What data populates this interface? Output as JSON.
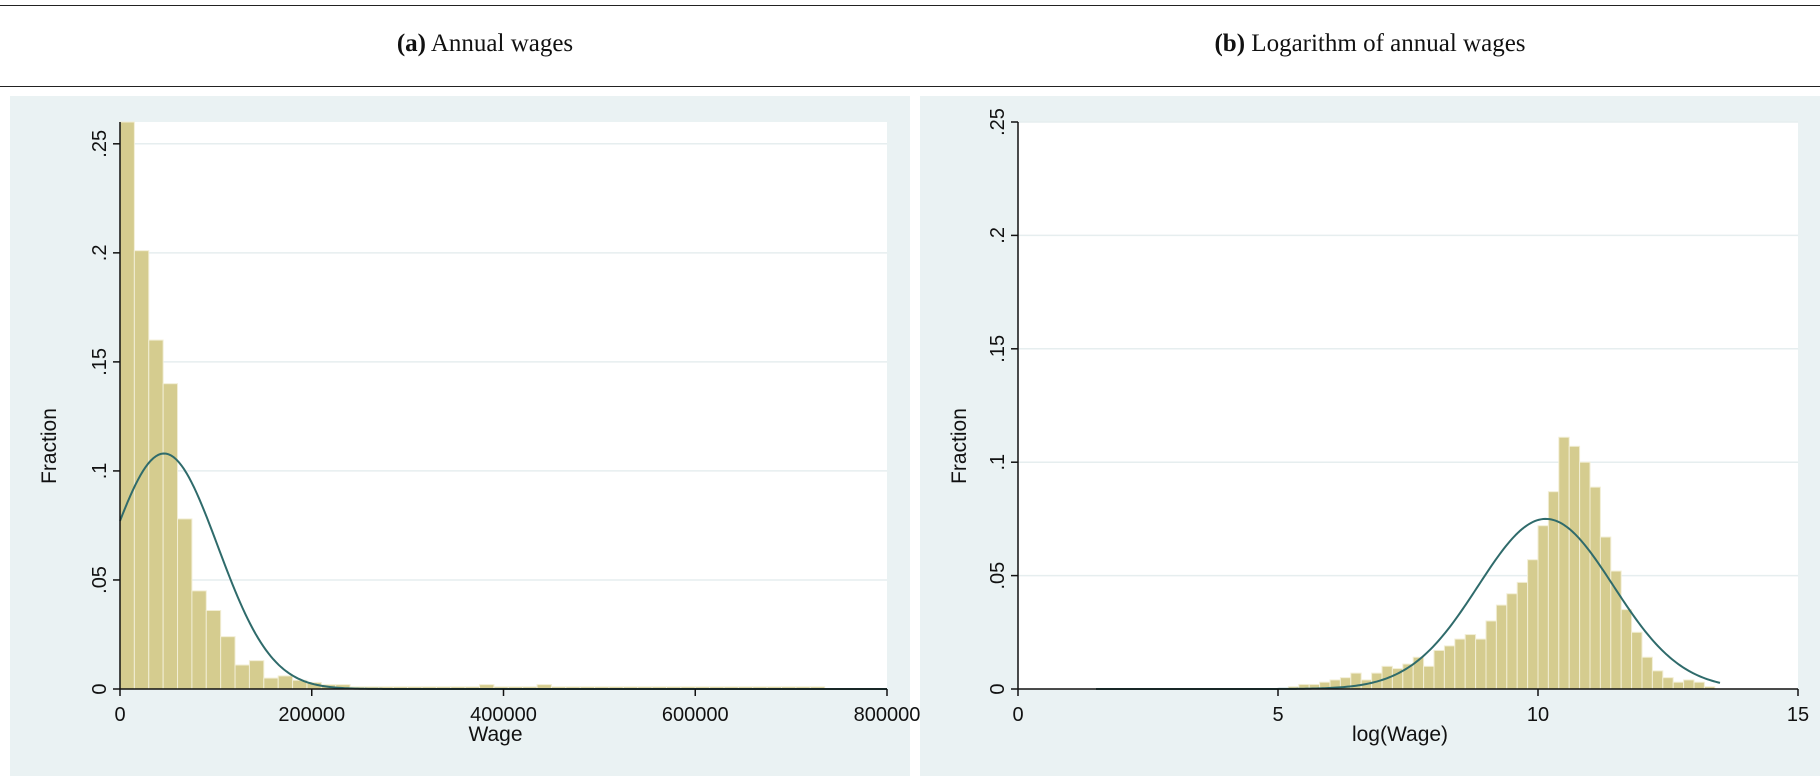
{
  "captions": [
    {
      "tag": "(a)",
      "text": "Annual wages"
    },
    {
      "tag": "(b)",
      "text": "Logarithm of annual wages"
    }
  ],
  "colors": {
    "bar_fill": "#d5cc8f",
    "bar_stroke": "#f2eed5",
    "curve": "#2f6b6b",
    "panel_bg": "#eaf2f3",
    "plot_bg": "#ffffff",
    "grid": "#e6eeef"
  },
  "chart_data": [
    {
      "type": "bar",
      "title": "",
      "xlabel": "Wage",
      "ylabel": "Fraction",
      "xlim": [
        0,
        800000
      ],
      "ylim": [
        0,
        0.26
      ],
      "xticks": [
        0,
        200000,
        400000,
        600000,
        800000
      ],
      "xtick_labels": [
        "0",
        "200000",
        "400000",
        "600000",
        "800000"
      ],
      "yticks": [
        0,
        0.05,
        0.1,
        0.15,
        0.2,
        0.25
      ],
      "ytick_labels": [
        "0",
        ".05",
        ".1",
        ".15",
        ".2",
        ".25"
      ],
      "bin_width": 15000,
      "bins_start": [
        0,
        15000,
        30000,
        45000,
        60000,
        75000,
        90000,
        105000,
        120000,
        135000,
        150000,
        165000,
        180000,
        195000,
        210000,
        225000,
        240000,
        255000,
        270000,
        285000,
        300000,
        315000,
        330000,
        345000,
        360000,
        375000,
        390000,
        405000,
        420000,
        435000,
        450000,
        465000,
        480000,
        495000,
        510000,
        525000,
        540000,
        555000,
        570000,
        585000,
        600000,
        615000,
        630000,
        645000,
        660000,
        675000,
        690000,
        705000,
        720000
      ],
      "values": [
        0.26,
        0.201,
        0.16,
        0.14,
        0.078,
        0.045,
        0.036,
        0.024,
        0.011,
        0.013,
        0.005,
        0.006,
        0.004,
        0.003,
        0.002,
        0.002,
        0.001,
        0.001,
        0.001,
        0.001,
        0.001,
        0.001,
        0.001,
        0.001,
        0.001,
        0.002,
        0.001,
        0.001,
        0.001,
        0.002,
        0.001,
        0.001,
        0.001,
        0.001,
        0.001,
        0.001,
        0.001,
        0.001,
        0.001,
        0.001,
        0.001,
        0.001,
        0.001,
        0.001,
        0.001,
        0.001,
        0.001,
        0.001,
        0.001
      ],
      "normal_curve": {
        "mean": 46000,
        "sd": 56000,
        "peak": 0.108
      }
    },
    {
      "type": "bar",
      "title": "",
      "xlabel": "log(Wage)",
      "ylabel": "Fraction",
      "xlim": [
        0,
        15
      ],
      "ylim": [
        0,
        0.25
      ],
      "xticks": [
        0,
        5,
        10,
        15
      ],
      "xtick_labels": [
        "0",
        "5",
        "10",
        "15"
      ],
      "yticks": [
        0,
        0.05,
        0.1,
        0.15,
        0.2,
        0.25
      ],
      "ytick_labels": [
        "0",
        ".05",
        ".1",
        ".15",
        ".2",
        ".25"
      ],
      "bin_width": 0.2,
      "bins_start": [
        5.2,
        5.4,
        5.6,
        5.8,
        6.0,
        6.2,
        6.4,
        6.6,
        6.8,
        7.0,
        7.2,
        7.4,
        7.6,
        7.8,
        8.0,
        8.2,
        8.4,
        8.6,
        8.8,
        9.0,
        9.2,
        9.4,
        9.6,
        9.8,
        10.0,
        10.2,
        10.4,
        10.6,
        10.8,
        11.0,
        11.2,
        11.4,
        11.6,
        11.8,
        12.0,
        12.2,
        12.4,
        12.6,
        12.8,
        13.0,
        13.2
      ],
      "values": [
        0.001,
        0.002,
        0.002,
        0.003,
        0.004,
        0.005,
        0.007,
        0.004,
        0.007,
        0.01,
        0.009,
        0.011,
        0.014,
        0.01,
        0.017,
        0.019,
        0.022,
        0.024,
        0.022,
        0.03,
        0.037,
        0.042,
        0.047,
        0.057,
        0.072,
        0.087,
        0.111,
        0.107,
        0.1,
        0.089,
        0.067,
        0.052,
        0.035,
        0.025,
        0.014,
        0.008,
        0.005,
        0.003,
        0.004,
        0.003,
        0.001
      ],
      "normal_curve": {
        "mean": 10.15,
        "sd": 1.3,
        "peak": 0.075,
        "x_range": [
          1.5,
          13.5
        ]
      }
    }
  ]
}
